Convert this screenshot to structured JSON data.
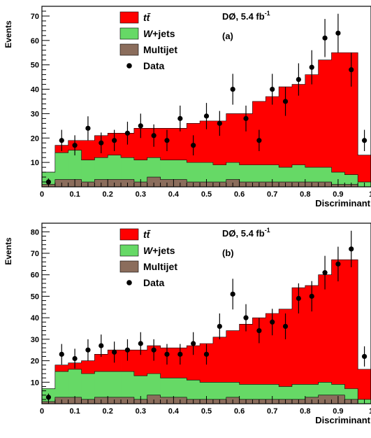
{
  "chart_data": [
    {
      "type": "bar",
      "panel": "(a)",
      "annotation": "DØ, 5.4 fb",
      "annotation_sup": "-1",
      "xlabel": "Discriminant",
      "ylabel": "Events",
      "xlim": [
        0,
        1
      ],
      "ylim": [
        0,
        74
      ],
      "xticks": [
        0,
        0.1,
        0.2,
        0.3,
        0.4,
        0.5,
        0.6,
        0.7,
        0.8,
        0.9,
        1
      ],
      "xtick_labels": [
        "0",
        "0.1",
        "0.2",
        "0.3",
        "0.4",
        "0.5",
        "0.6",
        "0.7",
        "0.8",
        "0.9",
        "1"
      ],
      "yticks": [
        10,
        20,
        30,
        40,
        50,
        60,
        70
      ],
      "yminor": 2,
      "bin_edges": [
        0,
        0.04,
        0.08,
        0.12,
        0.16,
        0.2,
        0.24,
        0.28,
        0.32,
        0.36,
        0.4,
        0.44,
        0.48,
        0.52,
        0.56,
        0.6,
        0.64,
        0.68,
        0.72,
        0.76,
        0.8,
        0.84,
        0.88,
        0.92,
        0.96,
        1
      ],
      "stack": [
        {
          "name": "Multijet",
          "color": "#8b6d5c",
          "values": [
            1,
            3,
            3,
            2,
            3,
            3,
            3,
            2,
            4,
            3,
            3,
            2,
            2,
            2,
            3,
            2,
            2,
            2,
            2,
            2,
            2,
            2,
            1,
            1,
            0
          ]
        },
        {
          "name": "W+jets",
          "color": "#66d966",
          "values": [
            5,
            11,
            12,
            9,
            9,
            10,
            9,
            9,
            8,
            8,
            8,
            8,
            8,
            7,
            7,
            7,
            7,
            7,
            6,
            7,
            6,
            6,
            5,
            4,
            2
          ]
        },
        {
          "name": "tt",
          "color": "#ff0000",
          "values": [
            0,
            3,
            4,
            8,
            9,
            9,
            10,
            13,
            12,
            13,
            13,
            16,
            17,
            18,
            20,
            21,
            26,
            28,
            33,
            33,
            38,
            44,
            49,
            50,
            11
          ]
        }
      ],
      "data": {
        "name": "Data",
        "x": [
          0.02,
          0.06,
          0.1,
          0.14,
          0.18,
          0.22,
          0.26,
          0.3,
          0.34,
          0.38,
          0.42,
          0.46,
          0.5,
          0.54,
          0.58,
          0.62,
          0.66,
          0.7,
          0.74,
          0.78,
          0.82,
          0.86,
          0.9,
          0.94,
          0.98
        ],
        "y": [
          2,
          19,
          17,
          24,
          18,
          19,
          22,
          25,
          21,
          19,
          28,
          17,
          29,
          26,
          40,
          28,
          19,
          40,
          35,
          44,
          49,
          61,
          63,
          48,
          19
        ]
      },
      "legend": [
        {
          "label": "t",
          "label_it": "t̄",
          "key": "tt"
        },
        {
          "label_it": "W",
          "label": "+jets",
          "key": "W+jets"
        },
        {
          "label": "Multijet",
          "key": "Multijet"
        },
        {
          "label": "Data",
          "key": "Data"
        }
      ]
    },
    {
      "type": "bar",
      "panel": "(b)",
      "annotation": "DØ, 5.4 fb",
      "annotation_sup": "-1",
      "xlabel": "Discriminant",
      "ylabel": "Events",
      "xlim": [
        0,
        1
      ],
      "ylim": [
        0,
        84
      ],
      "xticks": [
        0,
        0.1,
        0.2,
        0.3,
        0.4,
        0.5,
        0.6,
        0.7,
        0.8,
        0.9,
        1
      ],
      "xtick_labels": [
        "0",
        "0.1",
        "0.2",
        "0.3",
        "0.4",
        "0.5",
        "0.6",
        "0.7",
        "0.8",
        "0.9",
        "1"
      ],
      "yticks": [
        10,
        20,
        30,
        40,
        50,
        60,
        70,
        80
      ],
      "yminor": 2,
      "bin_edges": [
        0,
        0.04,
        0.08,
        0.12,
        0.16,
        0.2,
        0.24,
        0.28,
        0.32,
        0.36,
        0.4,
        0.44,
        0.48,
        0.52,
        0.56,
        0.6,
        0.64,
        0.68,
        0.72,
        0.76,
        0.8,
        0.84,
        0.88,
        0.92,
        0.96,
        1
      ],
      "stack": [
        {
          "name": "Multijet",
          "color": "#8b6d5c",
          "values": [
            1,
            3,
            3,
            2,
            3,
            3,
            3,
            2,
            4,
            3,
            3,
            2,
            2,
            2,
            3,
            2,
            2,
            2,
            2,
            2,
            3,
            4,
            4,
            2,
            0
          ]
        },
        {
          "name": "W+jets",
          "color": "#66d966",
          "values": [
            6,
            12,
            13,
            12,
            12,
            12,
            12,
            11,
            10,
            9,
            9,
            9,
            8,
            8,
            7,
            7,
            7,
            7,
            6,
            7,
            6,
            6,
            5,
            5,
            2
          ]
        },
        {
          "name": "tt",
          "color": "#ff0000",
          "values": [
            0,
            3,
            3,
            6,
            8,
            10,
            10,
            12,
            13,
            14,
            14,
            16,
            18,
            21,
            24,
            28,
            31,
            33,
            36,
            45,
            46,
            50,
            58,
            60,
            14
          ]
        }
      ],
      "data": {
        "name": "Data",
        "x": [
          0.02,
          0.06,
          0.1,
          0.14,
          0.18,
          0.22,
          0.26,
          0.3,
          0.34,
          0.38,
          0.42,
          0.46,
          0.5,
          0.54,
          0.58,
          0.62,
          0.66,
          0.7,
          0.74,
          0.78,
          0.82,
          0.86,
          0.9,
          0.94,
          0.98
        ],
        "y": [
          3,
          23,
          21,
          25,
          27,
          24,
          25,
          28,
          25,
          23,
          23,
          28,
          23,
          36,
          51,
          40,
          34,
          38,
          36,
          49,
          50,
          61,
          65,
          72,
          22
        ]
      },
      "legend": [
        {
          "label": "t",
          "label_it": "t̄",
          "key": "tt"
        },
        {
          "label_it": "W",
          "label": "+jets",
          "key": "W+jets"
        },
        {
          "label": "Multijet",
          "key": "Multijet"
        },
        {
          "label": "Data",
          "key": "Data"
        }
      ]
    }
  ]
}
